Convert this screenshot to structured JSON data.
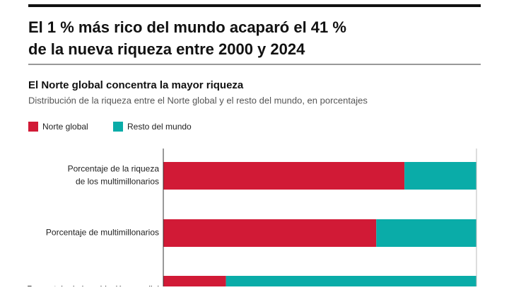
{
  "chart_data": {
    "type": "stacked-bar-horizontal",
    "title_lines": [
      "El 1 % más rico del mundo acaparó el 41 %",
      "de la nueva riqueza entre 2000 y 2024"
    ],
    "subtitle": "El Norte global concentra la mayor riqueza",
    "description": "Distribución de la riqueza entre el Norte global y el resto del mundo, en porcentajes",
    "categories": [
      [
        "Porcentaje de la riqueza",
        "de los multimillonarios"
      ],
      [
        "Porcentaje de multimillonarios"
      ],
      [
        "Porcentaje de la población mundial"
      ]
    ],
    "series": [
      {
        "name": "Norte global",
        "color": "#d11a36",
        "values": [
          77,
          68,
          20
        ]
      },
      {
        "name": "Resto del mundo",
        "color": "#0aaca8",
        "values": [
          23,
          32,
          80
        ]
      }
    ],
    "xlim": [
      0,
      100
    ]
  }
}
